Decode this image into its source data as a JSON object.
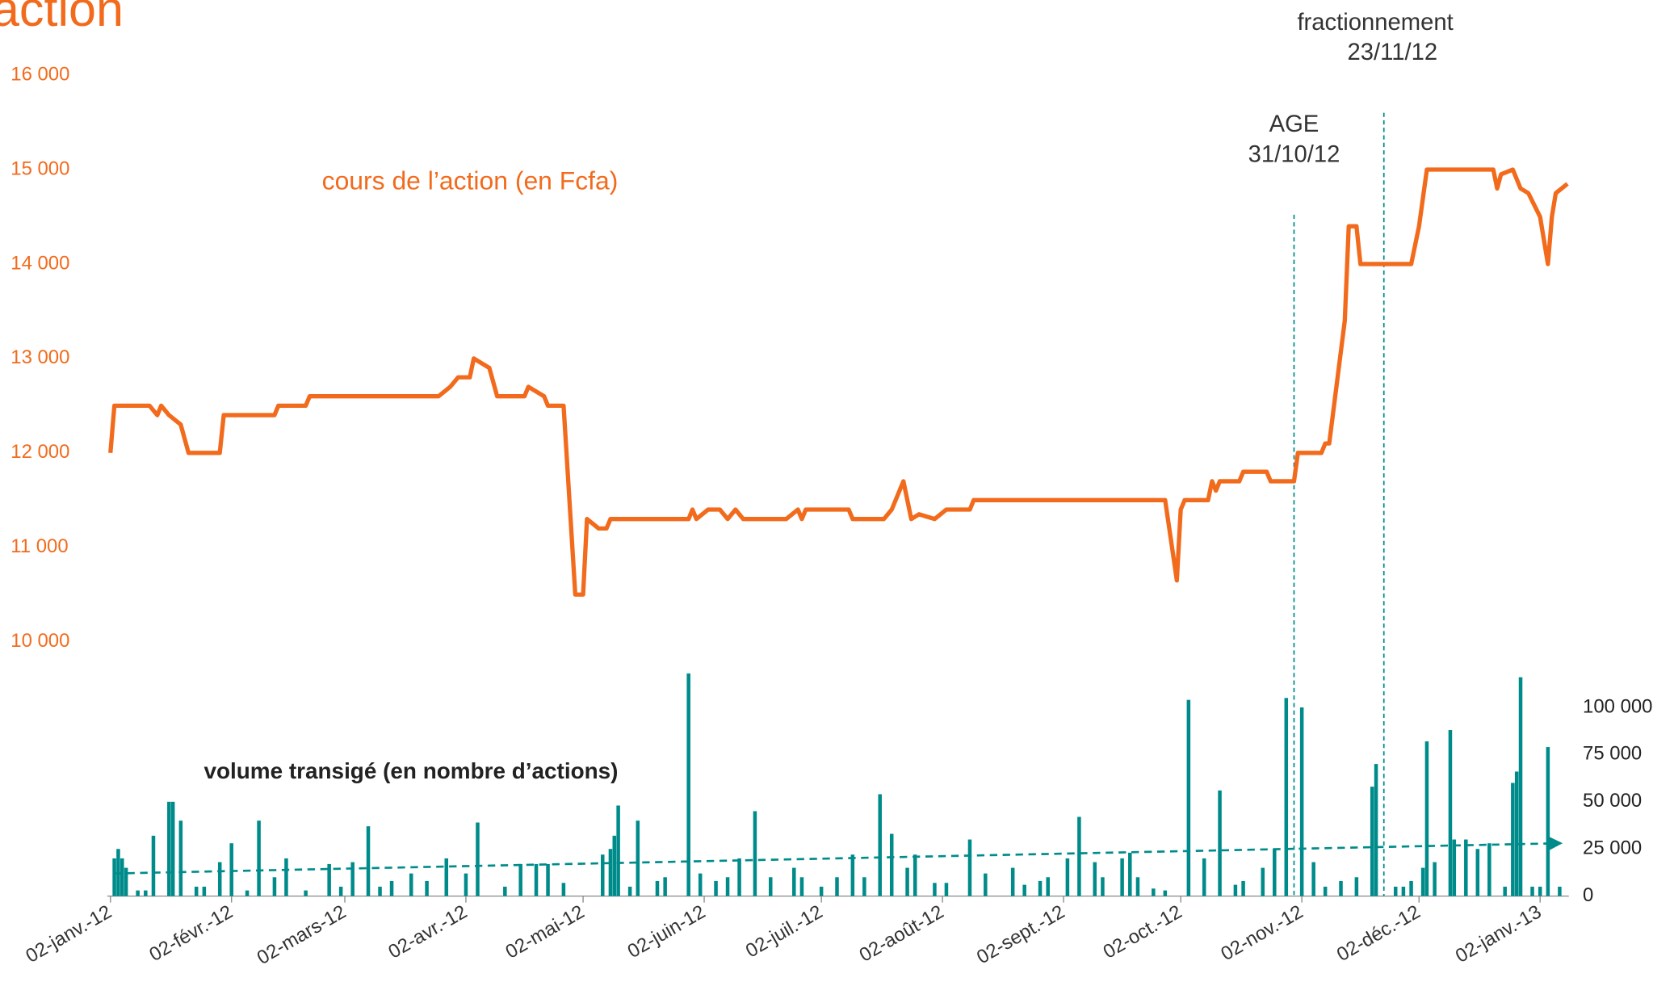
{
  "chart_data": {
    "type": "combo",
    "title": "l’action",
    "xlim": [
      "2011-12-30",
      "2013-01-11"
    ],
    "xticks": [
      {
        "value": "2012-01-02",
        "label": "02-janv.-12"
      },
      {
        "value": "2012-02-02",
        "label": "02-févr.-12"
      },
      {
        "value": "2012-03-02",
        "label": "02-mars-12"
      },
      {
        "value": "2012-04-02",
        "label": "02-avr.-12"
      },
      {
        "value": "2012-05-02",
        "label": "02-mai-12"
      },
      {
        "value": "2012-06-02",
        "label": "02-juin-12"
      },
      {
        "value": "2012-07-02",
        "label": "02-juil.-12"
      },
      {
        "value": "2012-08-02",
        "label": "02-août-12"
      },
      {
        "value": "2012-09-02",
        "label": "02-sept.-12"
      },
      {
        "value": "2012-10-02",
        "label": "02-oct.-12"
      },
      {
        "value": "2012-11-02",
        "label": "02-nov.-12"
      },
      {
        "value": "2012-12-02",
        "label": "02-déc.-12"
      },
      {
        "value": "2013-01-02",
        "label": "02-janv.-13"
      }
    ],
    "ylim": [
      10000,
      16000
    ],
    "yticks": [
      {
        "value": 10000,
        "label": "10 000"
      },
      {
        "value": 11000,
        "label": "11 000"
      },
      {
        "value": 12000,
        "label": "12 000"
      },
      {
        "value": 13000,
        "label": "13 000"
      },
      {
        "value": 14000,
        "label": "14 000"
      },
      {
        "value": 15000,
        "label": "15 000"
      },
      {
        "value": 16000,
        "label": "16 000"
      }
    ],
    "y2lim": [
      0,
      120000
    ],
    "y2ticks": [
      0,
      {
        "value": 25000,
        "label": "25 000"
      },
      {
        "value": 50000,
        "label": "50 000"
      },
      {
        "value": 75000,
        "label": "75 000"
      },
      {
        "value": 100000,
        "label": "100 000"
      }
    ],
    "series": [
      {
        "name": "cours de l’action (en Fcfa)",
        "type": "line",
        "color": "#f26b1d",
        "x": [
          "2012-01-02",
          "2012-01-03",
          "2012-01-12",
          "2012-01-14",
          "2012-01-15",
          "2012-01-17",
          "2012-01-20",
          "2012-01-22",
          "2012-01-30",
          "2012-01-31",
          "2012-02-13",
          "2012-02-14",
          "2012-02-21",
          "2012-02-22",
          "2012-03-26",
          "2012-03-29",
          "2012-03-31",
          "2012-04-03",
          "2012-04-04",
          "2012-04-08",
          "2012-04-10",
          "2012-04-17",
          "2012-04-18",
          "2012-04-22",
          "2012-04-23",
          "2012-04-27",
          "2012-04-30",
          "2012-05-02",
          "2012-05-03",
          "2012-05-06",
          "2012-05-08",
          "2012-05-09",
          "2012-05-29",
          "2012-05-30",
          "2012-05-31",
          "2012-06-03",
          "2012-06-06",
          "2012-06-08",
          "2012-06-10",
          "2012-06-12",
          "2012-06-23",
          "2012-06-26",
          "2012-06-27",
          "2012-06-28",
          "2012-07-09",
          "2012-07-10",
          "2012-07-18",
          "2012-07-20",
          "2012-07-23",
          "2012-07-25",
          "2012-07-27",
          "2012-07-31",
          "2012-08-03",
          "2012-08-09",
          "2012-08-10",
          "2012-09-28",
          "2012-10-01",
          "2012-10-02",
          "2012-10-03",
          "2012-10-09",
          "2012-10-10",
          "2012-10-11",
          "2012-10-12",
          "2012-10-17",
          "2012-10-18",
          "2012-10-24",
          "2012-10-25",
          "2012-10-31",
          "2012-11-01",
          "2012-11-07",
          "2012-11-08",
          "2012-11-09",
          "2012-11-13",
          "2012-11-14",
          "2012-11-16",
          "2012-11-17",
          "2012-11-30",
          "2012-12-02",
          "2012-12-04",
          "2012-12-21",
          "2012-12-22",
          "2012-12-23",
          "2012-12-26",
          "2012-12-28",
          "2012-12-30",
          "2013-01-02",
          "2013-01-04",
          "2013-01-05",
          "2013-01-06",
          "2013-01-09"
        ],
        "values": [
          12000,
          12500,
          12500,
          12400,
          12500,
          12400,
          12300,
          12000,
          12000,
          12400,
          12400,
          12500,
          12500,
          12600,
          12600,
          12700,
          12800,
          12800,
          13000,
          12900,
          12600,
          12600,
          12700,
          12600,
          12500,
          12500,
          10500,
          10500,
          11300,
          11200,
          11200,
          11300,
          11300,
          11400,
          11300,
          11400,
          11400,
          11300,
          11400,
          11300,
          11300,
          11400,
          11300,
          11400,
          11400,
          11300,
          11300,
          11400,
          11700,
          11300,
          11350,
          11300,
          11400,
          11400,
          11500,
          11500,
          10650,
          11400,
          11500,
          11500,
          11700,
          11600,
          11700,
          11700,
          11800,
          11800,
          11700,
          11700,
          12000,
          12000,
          12100,
          12100,
          13400,
          14400,
          14400,
          14000,
          14000,
          14400,
          15000,
          15000,
          14800,
          14950,
          15000,
          14800,
          14750,
          14500,
          14000,
          14500,
          14750,
          14850
        ]
      },
      {
        "name": "volume transigé (en nombre d’actions)",
        "type": "bar",
        "axis": "y2",
        "color": "#008b8b",
        "x": [
          "2012-01-03",
          "2012-01-04",
          "2012-01-05",
          "2012-01-06",
          "2012-01-09",
          "2012-01-11",
          "2012-01-13",
          "2012-01-17",
          "2012-01-18",
          "2012-01-20",
          "2012-01-24",
          "2012-01-26",
          "2012-01-30",
          "2012-02-02",
          "2012-02-06",
          "2012-02-09",
          "2012-02-13",
          "2012-02-16",
          "2012-02-21",
          "2012-02-27",
          "2012-03-01",
          "2012-03-04",
          "2012-03-08",
          "2012-03-11",
          "2012-03-14",
          "2012-03-19",
          "2012-03-23",
          "2012-03-28",
          "2012-04-02",
          "2012-04-05",
          "2012-04-12",
          "2012-04-16",
          "2012-04-20",
          "2012-04-23",
          "2012-04-27",
          "2012-05-07",
          "2012-05-09",
          "2012-05-10",
          "2012-05-11",
          "2012-05-14",
          "2012-05-16",
          "2012-05-21",
          "2012-05-23",
          "2012-05-29",
          "2012-06-01",
          "2012-06-05",
          "2012-06-08",
          "2012-06-11",
          "2012-06-15",
          "2012-06-19",
          "2012-06-25",
          "2012-06-27",
          "2012-07-02",
          "2012-07-06",
          "2012-07-10",
          "2012-07-13",
          "2012-07-17",
          "2012-07-20",
          "2012-07-24",
          "2012-07-26",
          "2012-07-31",
          "2012-08-03",
          "2012-08-09",
          "2012-08-13",
          "2012-08-20",
          "2012-08-23",
          "2012-08-27",
          "2012-08-29",
          "2012-09-03",
          "2012-09-06",
          "2012-09-10",
          "2012-09-12",
          "2012-09-17",
          "2012-09-19",
          "2012-09-21",
          "2012-09-25",
          "2012-09-28",
          "2012-10-04",
          "2012-10-08",
          "2012-10-12",
          "2012-10-16",
          "2012-10-18",
          "2012-10-23",
          "2012-10-26",
          "2012-10-29",
          "2012-11-02",
          "2012-11-05",
          "2012-11-08",
          "2012-11-12",
          "2012-11-16",
          "2012-11-20",
          "2012-11-21",
          "2012-11-26",
          "2012-11-28",
          "2012-11-30",
          "2012-12-03",
          "2012-12-04",
          "2012-12-06",
          "2012-12-10",
          "2012-12-11",
          "2012-12-14",
          "2012-12-17",
          "2012-12-20",
          "2012-12-24",
          "2012-12-26",
          "2012-12-27",
          "2012-12-28",
          "2012-12-31",
          "2013-01-02",
          "2013-01-04",
          "2013-01-07"
        ],
        "values": [
          20000,
          25000,
          20000,
          15000,
          3000,
          3000,
          32000,
          50000,
          50000,
          40000,
          5000,
          5000,
          18000,
          28000,
          3000,
          40000,
          10000,
          20000,
          3000,
          17000,
          5000,
          18000,
          37000,
          5000,
          8000,
          12000,
          8000,
          20000,
          12000,
          39000,
          5000,
          17000,
          17000,
          17000,
          7000,
          22000,
          25000,
          32000,
          48000,
          5000,
          40000,
          8000,
          10000,
          118000,
          12000,
          8000,
          10000,
          20000,
          45000,
          10000,
          15000,
          10000,
          5000,
          10000,
          22000,
          10000,
          54000,
          33000,
          15000,
          22000,
          7000,
          7000,
          30000,
          12000,
          15000,
          6000,
          8000,
          10000,
          20000,
          42000,
          18000,
          10000,
          20000,
          23000,
          10000,
          4000,
          3000,
          104000,
          20000,
          56000,
          6000,
          8000,
          15000,
          25000,
          105000,
          100000,
          18000,
          5000,
          8000,
          10000,
          58000,
          70000,
          5000,
          5000,
          8000,
          15000,
          82000,
          18000,
          88000,
          30000,
          30000,
          25000,
          28000,
          5000,
          60000,
          66000,
          116000,
          5000,
          5000,
          79000,
          5000
        ]
      }
    ],
    "trendline": {
      "axis": "y2",
      "color": "#008b8b",
      "x": [
        "2012-01-03",
        "2013-01-07"
      ],
      "values": [
        12000,
        28000
      ]
    },
    "annotations": [
      {
        "x": "2012-10-31",
        "lines": [
          "AGE",
          "31/10/12"
        ]
      },
      {
        "x": "2012-11-23",
        "lines": [
          "fractionnement",
          "23/11/12"
        ]
      }
    ]
  }
}
